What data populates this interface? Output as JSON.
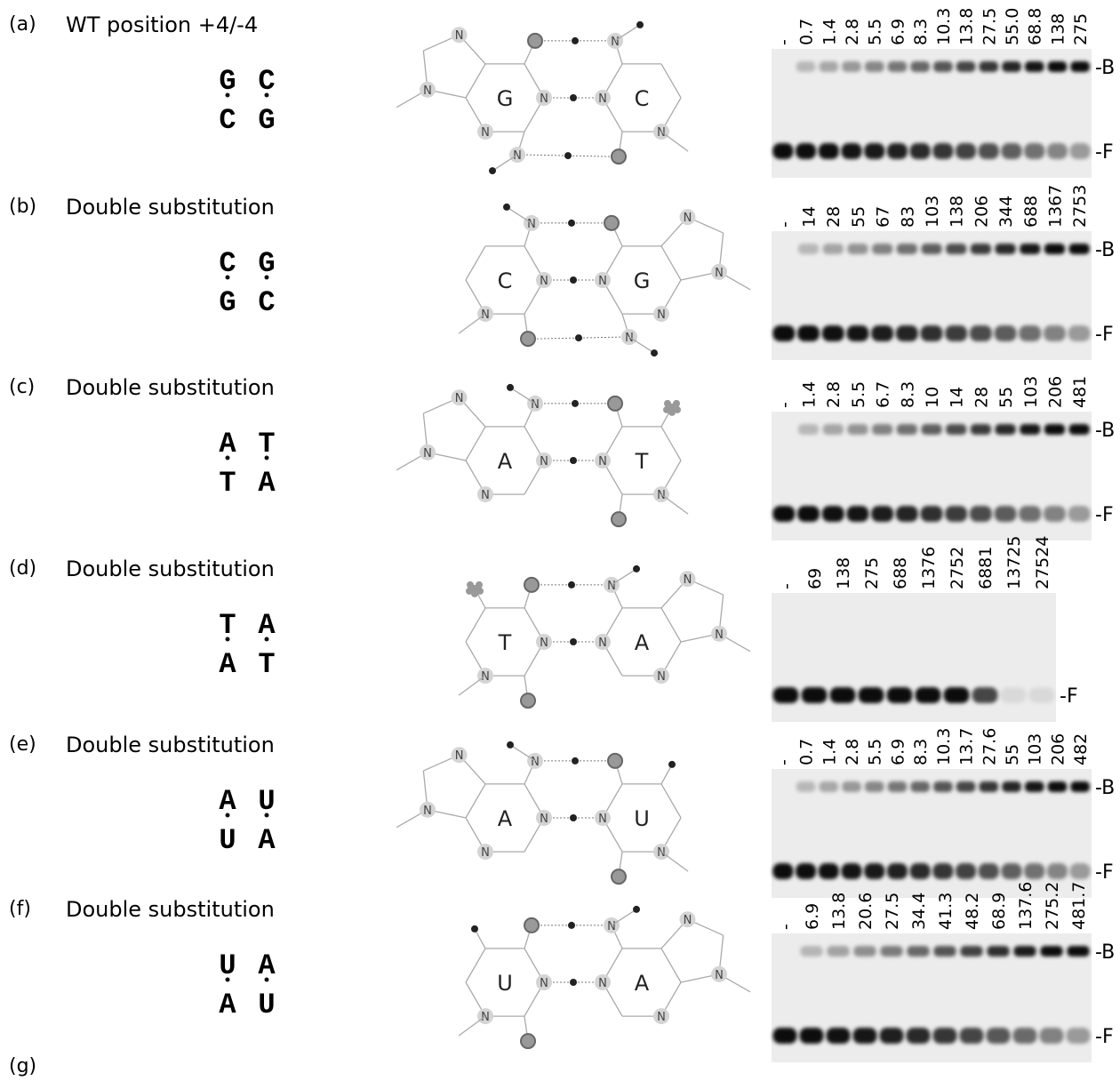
{
  "ring_atom": "N",
  "final_label": "(g)",
  "panels": [
    {
      "label": "(a)",
      "title": "WT position +4/-4",
      "pairs": [
        [
          "G",
          "C"
        ],
        [
          "C",
          "G"
        ]
      ],
      "lanes": [
        "-",
        "0.7",
        "1.4",
        "2.8",
        "5.5",
        "6.9",
        "8.3",
        "10.3",
        "13.8",
        "27.5",
        "55.0",
        "68.8",
        "138",
        "275"
      ],
      "bands": [
        "-B",
        "-F"
      ]
    },
    {
      "label": "(b)",
      "title": "Double substitution",
      "pairs": [
        [
          "C",
          "G"
        ],
        [
          "G",
          "C"
        ]
      ],
      "lanes": [
        "-",
        "14",
        "28",
        "55",
        "67",
        "83",
        "103",
        "138",
        "206",
        "344",
        "688",
        "1367",
        "2753"
      ],
      "bands": [
        "-B",
        "-F"
      ]
    },
    {
      "label": "(c)",
      "title": "Double substitution",
      "pairs": [
        [
          "A",
          "T"
        ],
        [
          "T",
          "A"
        ]
      ],
      "lanes": [
        "-",
        "1.4",
        "2.8",
        "5.5",
        "6.7",
        "8.3",
        "10",
        "14",
        "28",
        "55",
        "103",
        "206",
        "481"
      ],
      "bands": [
        "-B",
        "-F"
      ]
    },
    {
      "label": "(d)",
      "title": "Double substitution",
      "pairs": [
        [
          "T",
          "A"
        ],
        [
          "A",
          "T"
        ]
      ],
      "lanes": [
        "-",
        "69",
        "138",
        "275",
        "688",
        "1376",
        "2752",
        "6881",
        "13725",
        "27524"
      ],
      "bands": [
        "-F"
      ]
    },
    {
      "label": "(e)",
      "title": "Double substitution",
      "pairs": [
        [
          "A",
          "U"
        ],
        [
          "U",
          "A"
        ]
      ],
      "lanes": [
        "-",
        "0.7",
        "1.4",
        "2.8",
        "5.5",
        "6.9",
        "8.3",
        "10.3",
        "13.7",
        "27.6",
        "55",
        "103",
        "206",
        "482"
      ],
      "bands": [
        "-B",
        "-F"
      ]
    },
    {
      "label": "(f)",
      "title": "Double substitution",
      "pairs": [
        [
          "U",
          "A"
        ],
        [
          "A",
          "U"
        ]
      ],
      "lanes": [
        "-",
        "6.9",
        "13.8",
        "20.6",
        "27.5",
        "34.4",
        "41.3",
        "48.2",
        "68.9",
        "137.6",
        "275.2",
        "481.7"
      ],
      "bands": [
        "-B",
        "-F"
      ]
    }
  ]
}
